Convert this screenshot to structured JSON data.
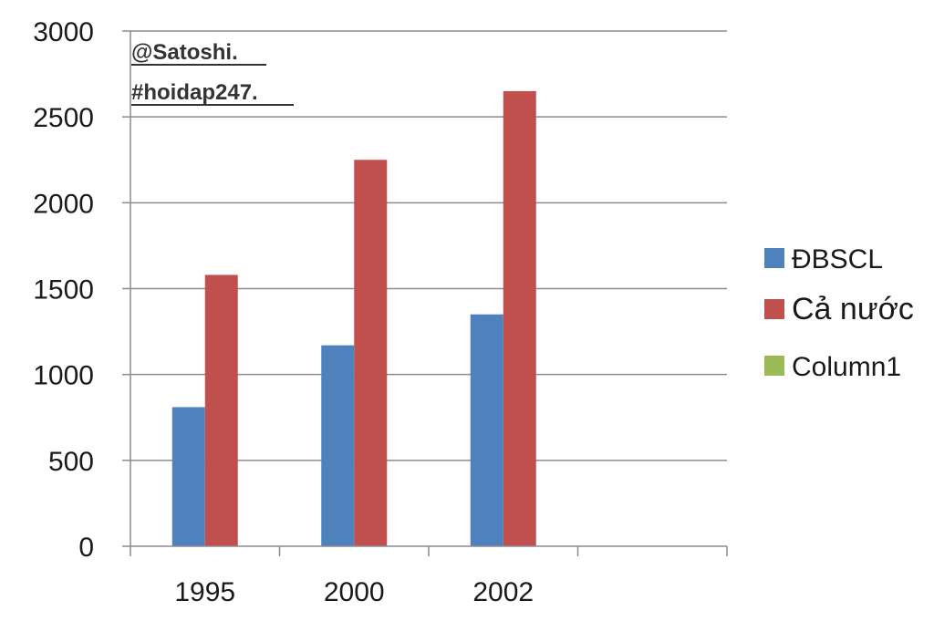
{
  "chart_data": {
    "type": "bar",
    "categories": [
      "1995",
      "2000",
      "2002",
      ""
    ],
    "series": [
      {
        "name": "ĐBSCL",
        "color": "#4f81bd",
        "values": [
          810,
          1170,
          1350,
          null
        ]
      },
      {
        "name": "Cả nước",
        "color": "#c0504d",
        "values": [
          1580,
          2250,
          2650,
          null
        ]
      },
      {
        "name": "Column1",
        "color": "#9bbb59",
        "values": [
          null,
          null,
          null,
          null
        ]
      }
    ],
    "ylim": [
      0,
      3000
    ],
    "yticks": [
      "0",
      "500",
      "1000",
      "1500",
      "2000",
      "2500",
      "3000"
    ],
    "grid": true,
    "legend_position": "right",
    "watermark": [
      "@Satoshi.",
      "#hoidap247."
    ]
  }
}
